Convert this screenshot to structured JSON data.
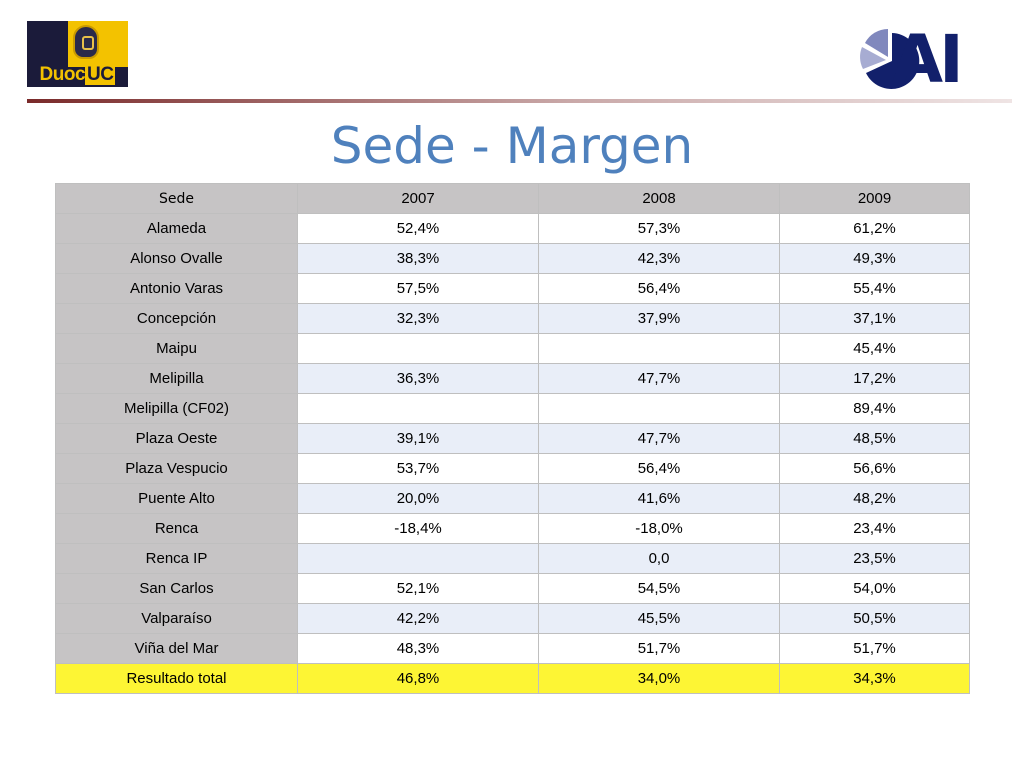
{
  "logos": {
    "left": {
      "text_part1": "Duoc",
      "text_part2": "UC",
      "colors": {
        "navy": "#1b1b3a",
        "gold": "#f3c200"
      }
    },
    "right": {
      "text": "AI",
      "colors": {
        "navy": "#12206b",
        "slices": "#7f86b8"
      }
    }
  },
  "title": "Sede - Margen",
  "table": {
    "headers": [
      "Sede",
      "2007",
      "2008",
      "2009"
    ],
    "rows": [
      {
        "sede": "Alameda",
        "y2007": "52,4%",
        "y2008": "57,3%",
        "y2009": "61,2%"
      },
      {
        "sede": "Alonso Ovalle",
        "y2007": "38,3%",
        "y2008": "42,3%",
        "y2009": "49,3%"
      },
      {
        "sede": "Antonio Varas",
        "y2007": "57,5%",
        "y2008": "56,4%",
        "y2009": "55,4%"
      },
      {
        "sede": "Concepción",
        "y2007": "32,3%",
        "y2008": "37,9%",
        "y2009": "37,1%"
      },
      {
        "sede": "Maipu",
        "y2007": "",
        "y2008": "",
        "y2009": "45,4%"
      },
      {
        "sede": "Melipilla",
        "y2007": "36,3%",
        "y2008": "47,7%",
        "y2009": "17,2%"
      },
      {
        "sede": "Melipilla (CF02)",
        "y2007": "",
        "y2008": "",
        "y2009": "89,4%"
      },
      {
        "sede": "Plaza Oeste",
        "y2007": "39,1%",
        "y2008": "47,7%",
        "y2009": "48,5%"
      },
      {
        "sede": "Plaza Vespucio",
        "y2007": "53,7%",
        "y2008": "56,4%",
        "y2009": "56,6%"
      },
      {
        "sede": "Puente Alto",
        "y2007": "20,0%",
        "y2008": "41,6%",
        "y2009": "48,2%"
      },
      {
        "sede": "Renca",
        "y2007": "-18,4%",
        "y2008": "-18,0%",
        "y2009": "23,4%"
      },
      {
        "sede": "Renca IP",
        "y2007": "",
        "y2008": "0,0",
        "y2009": "23,5%"
      },
      {
        "sede": "San Carlos",
        "y2007": "52,1%",
        "y2008": "54,5%",
        "y2009": "54,0%"
      },
      {
        "sede": "Valparaíso",
        "y2007": "42,2%",
        "y2008": "45,5%",
        "y2009": "50,5%"
      },
      {
        "sede": "Viña del Mar",
        "y2007": "48,3%",
        "y2008": "51,7%",
        "y2009": "51,7%"
      }
    ],
    "total": {
      "sede": "Resultado total",
      "y2007": "46,8%",
      "y2008": "34,0%",
      "y2009": "34,3%"
    }
  },
  "colors": {
    "title": "#4f81bd",
    "header_bg": "#c6c4c5",
    "row_alt_bg": "#e9eef8",
    "total_bg": "#fdf534"
  }
}
